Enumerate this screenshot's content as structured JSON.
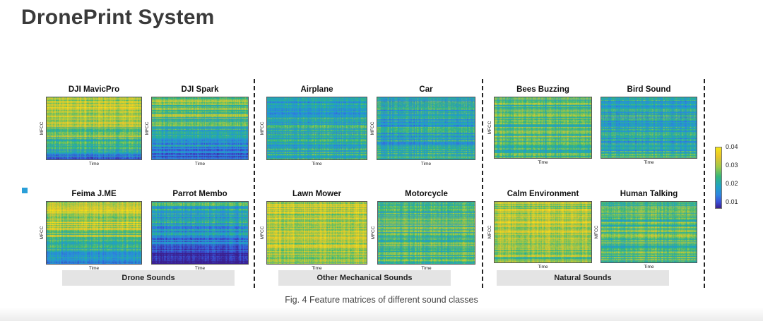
{
  "slide": {
    "title": "DronePrint System"
  },
  "figure": {
    "axis_labels": {
      "y": "MFCC",
      "x": "Time"
    },
    "panels": [
      {
        "name": "DJI MavicPro",
        "group": "Drone Sounds",
        "palette": "drone_bright"
      },
      {
        "name": "DJI Spark",
        "group": "Drone Sounds",
        "palette": "drone_mixed"
      },
      {
        "name": "Feima J.ME",
        "group": "Drone Sounds",
        "palette": "drone_bright"
      },
      {
        "name": "Parrot Membo",
        "group": "Drone Sounds",
        "palette": "drone_dark"
      },
      {
        "name": "Airplane",
        "group": "Other Mechanical Sounds",
        "palette": "cool"
      },
      {
        "name": "Car",
        "group": "Other Mechanical Sounds",
        "palette": "cool"
      },
      {
        "name": "Lawn Mower",
        "group": "Other Mechanical Sounds",
        "palette": "warm"
      },
      {
        "name": "Motorcycle",
        "group": "Other Mechanical Sounds",
        "palette": "mixed"
      },
      {
        "name": "Bees Buzzing",
        "group": "Natural Sounds",
        "palette": "mixed"
      },
      {
        "name": "Bird Sound",
        "group": "Natural Sounds",
        "palette": "cool"
      },
      {
        "name": "Calm Environment",
        "group": "Natural Sounds",
        "palette": "warm"
      },
      {
        "name": "Human Talking",
        "group": "Natural Sounds",
        "palette": "mixed"
      }
    ],
    "groups": [
      "Drone Sounds",
      "Other Mechanical Sounds",
      "Natural Sounds"
    ],
    "colorbar": {
      "ticks": [
        "0.04",
        "0.03",
        "0.02",
        "0.01"
      ],
      "colors": [
        "#3b1f8e",
        "#3a4fd6",
        "#2e86e0",
        "#1fa3c4",
        "#35b779",
        "#a0c947",
        "#e8c42b",
        "#f5e616"
      ]
    },
    "caption": "Fig. 4 Feature matrices of different sound classes"
  }
}
